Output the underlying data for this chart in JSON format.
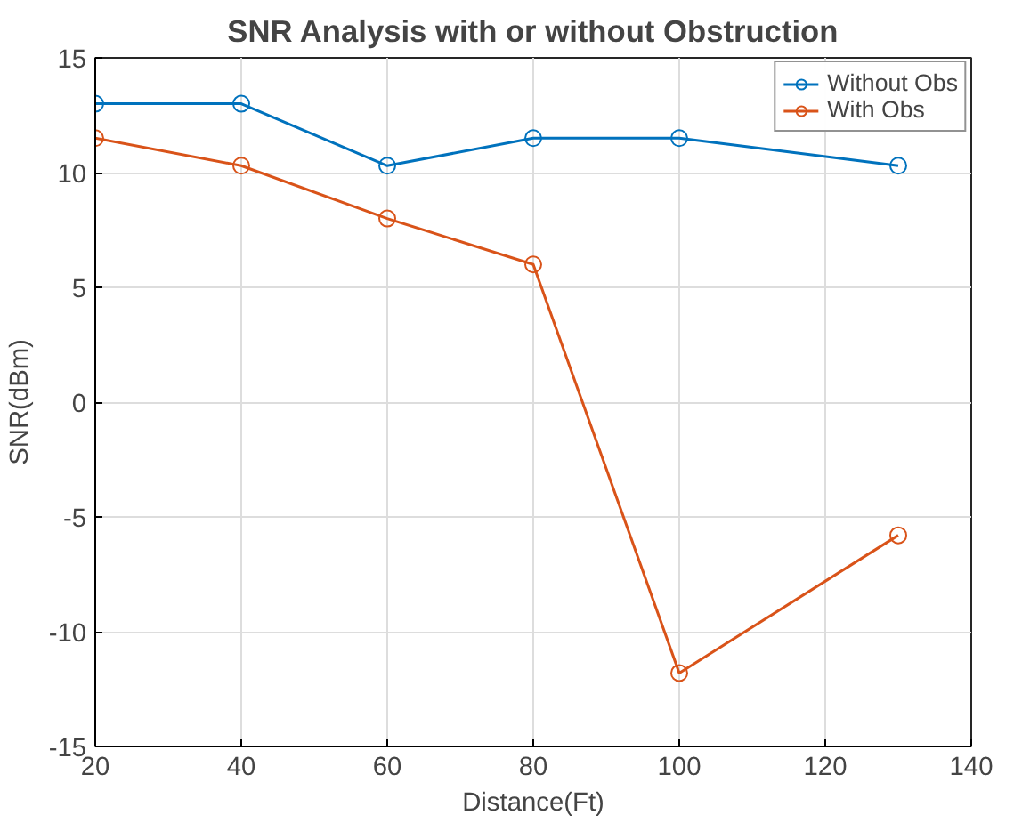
{
  "chart_data": {
    "type": "line",
    "title": "SNR Analysis with or without Obstruction",
    "xlabel": "Distance(Ft)",
    "ylabel": "SNR(dBm)",
    "x": [
      20,
      40,
      60,
      80,
      100,
      130
    ],
    "series": [
      {
        "name": "Without Obs",
        "color": "#0072bd",
        "values": [
          13,
          13,
          10.3,
          11.5,
          11.5,
          10.3
        ]
      },
      {
        "name": "With Obs",
        "color": "#d95319",
        "values": [
          11.5,
          10.3,
          8,
          6,
          -11.8,
          -5.8
        ]
      }
    ],
    "xlim": [
      20,
      140
    ],
    "ylim": [
      -15,
      15
    ],
    "xticks": [
      20,
      40,
      60,
      80,
      100,
      120,
      140
    ],
    "yticks": [
      -15,
      -10,
      -5,
      0,
      5,
      10,
      15
    ],
    "grid": true,
    "legend": "top right",
    "marker": "circle",
    "line_style": "solid"
  }
}
